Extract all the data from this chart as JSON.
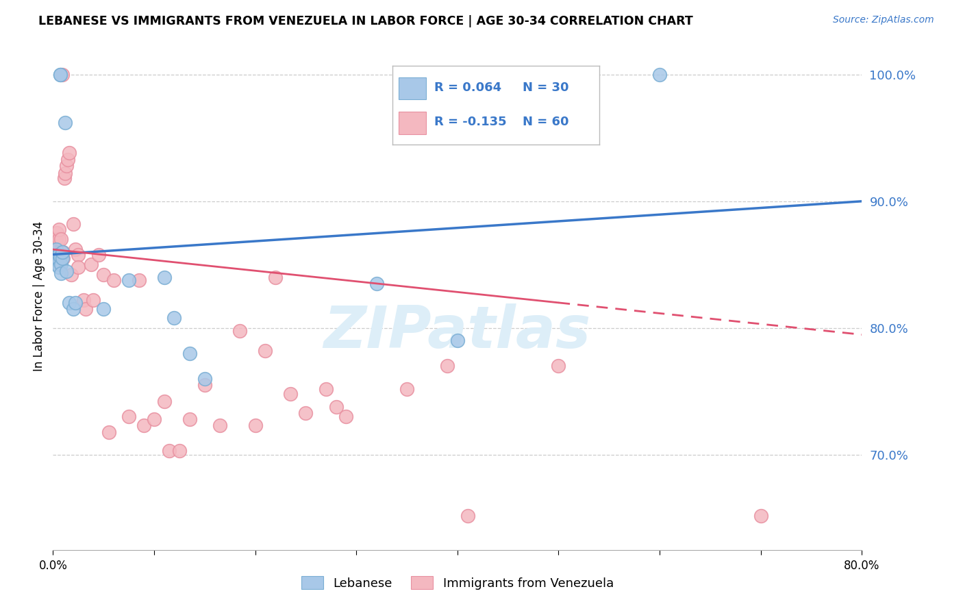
{
  "title": "LEBANESE VS IMMIGRANTS FROM VENEZUELA IN LABOR FORCE | AGE 30-34 CORRELATION CHART",
  "source": "Source: ZipAtlas.com",
  "ylabel": "In Labor Force | Age 30-34",
  "xlim": [
    0.0,
    0.8
  ],
  "ylim": [
    0.625,
    1.025
  ],
  "yticks": [
    0.7,
    0.8,
    0.9,
    1.0
  ],
  "ytick_labels": [
    "70.0%",
    "80.0%",
    "90.0%",
    "100.0%"
  ],
  "xticks": [
    0.0,
    0.1,
    0.2,
    0.3,
    0.4,
    0.5,
    0.6,
    0.7,
    0.8
  ],
  "xtick_labels": [
    "0.0%",
    "",
    "",
    "",
    "",
    "",
    "",
    "",
    "80.0%"
  ],
  "legend_r_blue": "R = 0.064",
  "legend_n_blue": "N = 30",
  "legend_r_pink": "R = -0.135",
  "legend_n_pink": "N = 60",
  "blue_color": "#a8c8e8",
  "pink_color": "#f4b8c0",
  "blue_edge_color": "#7aaed4",
  "pink_edge_color": "#e890a0",
  "line_blue_color": "#3a78c9",
  "line_pink_color": "#e05070",
  "text_blue_color": "#3a78c9",
  "watermark_color": "#ddeef8",
  "watermark": "ZIPatlas",
  "blue_x": [
    0.003,
    0.003,
    0.004,
    0.004,
    0.005,
    0.005,
    0.006,
    0.006,
    0.006,
    0.007,
    0.007,
    0.007,
    0.008,
    0.008,
    0.009,
    0.009,
    0.012,
    0.013,
    0.016,
    0.02,
    0.022,
    0.05,
    0.075,
    0.11,
    0.12,
    0.135,
    0.15,
    0.32,
    0.4,
    0.6
  ],
  "blue_y": [
    0.856,
    0.862,
    0.856,
    0.85,
    0.858,
    0.853,
    0.858,
    0.853,
    0.848,
    1.0,
    1.0,
    0.856,
    0.85,
    0.843,
    0.855,
    0.86,
    0.962,
    0.845,
    0.82,
    0.815,
    0.82,
    0.815,
    0.838,
    0.84,
    0.808,
    0.78,
    0.76,
    0.835,
    0.79,
    1.0
  ],
  "pink_x": [
    0.002,
    0.002,
    0.003,
    0.003,
    0.004,
    0.004,
    0.005,
    0.005,
    0.005,
    0.006,
    0.006,
    0.007,
    0.007,
    0.008,
    0.008,
    0.009,
    0.01,
    0.01,
    0.011,
    0.012,
    0.013,
    0.015,
    0.016,
    0.018,
    0.02,
    0.022,
    0.025,
    0.025,
    0.03,
    0.032,
    0.038,
    0.04,
    0.045,
    0.05,
    0.055,
    0.06,
    0.075,
    0.085,
    0.09,
    0.1,
    0.11,
    0.115,
    0.125,
    0.135,
    0.15,
    0.165,
    0.185,
    0.2,
    0.21,
    0.22,
    0.235,
    0.25,
    0.27,
    0.28,
    0.29,
    0.35,
    0.39,
    0.41,
    0.5,
    0.7
  ],
  "pink_y": [
    0.858,
    0.865,
    0.862,
    0.87,
    0.858,
    0.875,
    0.86,
    0.856,
    0.852,
    0.87,
    0.878,
    0.86,
    0.85,
    0.858,
    0.87,
    1.0,
    0.86,
    0.855,
    0.918,
    0.922,
    0.928,
    0.933,
    0.938,
    0.842,
    0.882,
    0.862,
    0.858,
    0.848,
    0.822,
    0.815,
    0.85,
    0.822,
    0.858,
    0.842,
    0.718,
    0.838,
    0.73,
    0.838,
    0.723,
    0.728,
    0.742,
    0.703,
    0.703,
    0.728,
    0.755,
    0.723,
    0.798,
    0.723,
    0.782,
    0.84,
    0.748,
    0.733,
    0.752,
    0.738,
    0.73,
    0.752,
    0.77,
    0.652,
    0.77,
    0.652
  ]
}
